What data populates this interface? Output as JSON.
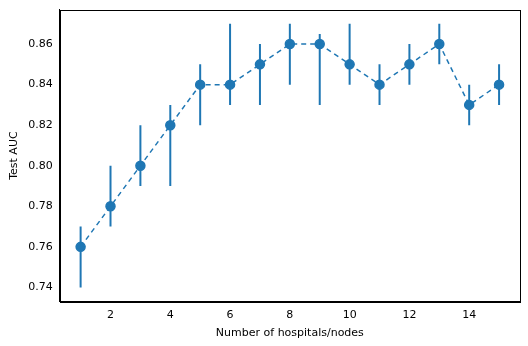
{
  "chart_data": {
    "type": "line",
    "x_label": "Number of hospitals/nodes",
    "y_label": "Test AUC",
    "x": [
      1,
      2,
      3,
      4,
      5,
      6,
      7,
      8,
      9,
      10,
      11,
      12,
      13,
      14,
      15
    ],
    "values": [
      0.76,
      0.78,
      0.8,
      0.82,
      0.84,
      0.84,
      0.85,
      0.86,
      0.86,
      0.85,
      0.84,
      0.85,
      0.86,
      0.83,
      0.84
    ],
    "error_low": [
      0.74,
      0.77,
      0.79,
      0.79,
      0.82,
      0.83,
      0.83,
      0.84,
      0.83,
      0.84,
      0.83,
      0.84,
      0.85,
      0.82,
      0.83
    ],
    "error_high": [
      0.77,
      0.8,
      0.82,
      0.83,
      0.85,
      0.87,
      0.86,
      0.87,
      0.865,
      0.87,
      0.85,
      0.86,
      0.87,
      0.84,
      0.85
    ],
    "color": "#1f77b4",
    "marker": "circle",
    "line_style": "dashed",
    "grid": false,
    "xlim": [
      0.3,
      15.7
    ],
    "xticks": [
      2,
      4,
      6,
      8,
      10,
      12,
      14
    ],
    "ylim": [
      0.733,
      0.877
    ],
    "yticks": [
      0.74,
      0.76,
      0.78,
      {
        "value": 0.8,
        "label": "0.80"
      },
      0.82,
      0.84,
      0.86
    ]
  }
}
